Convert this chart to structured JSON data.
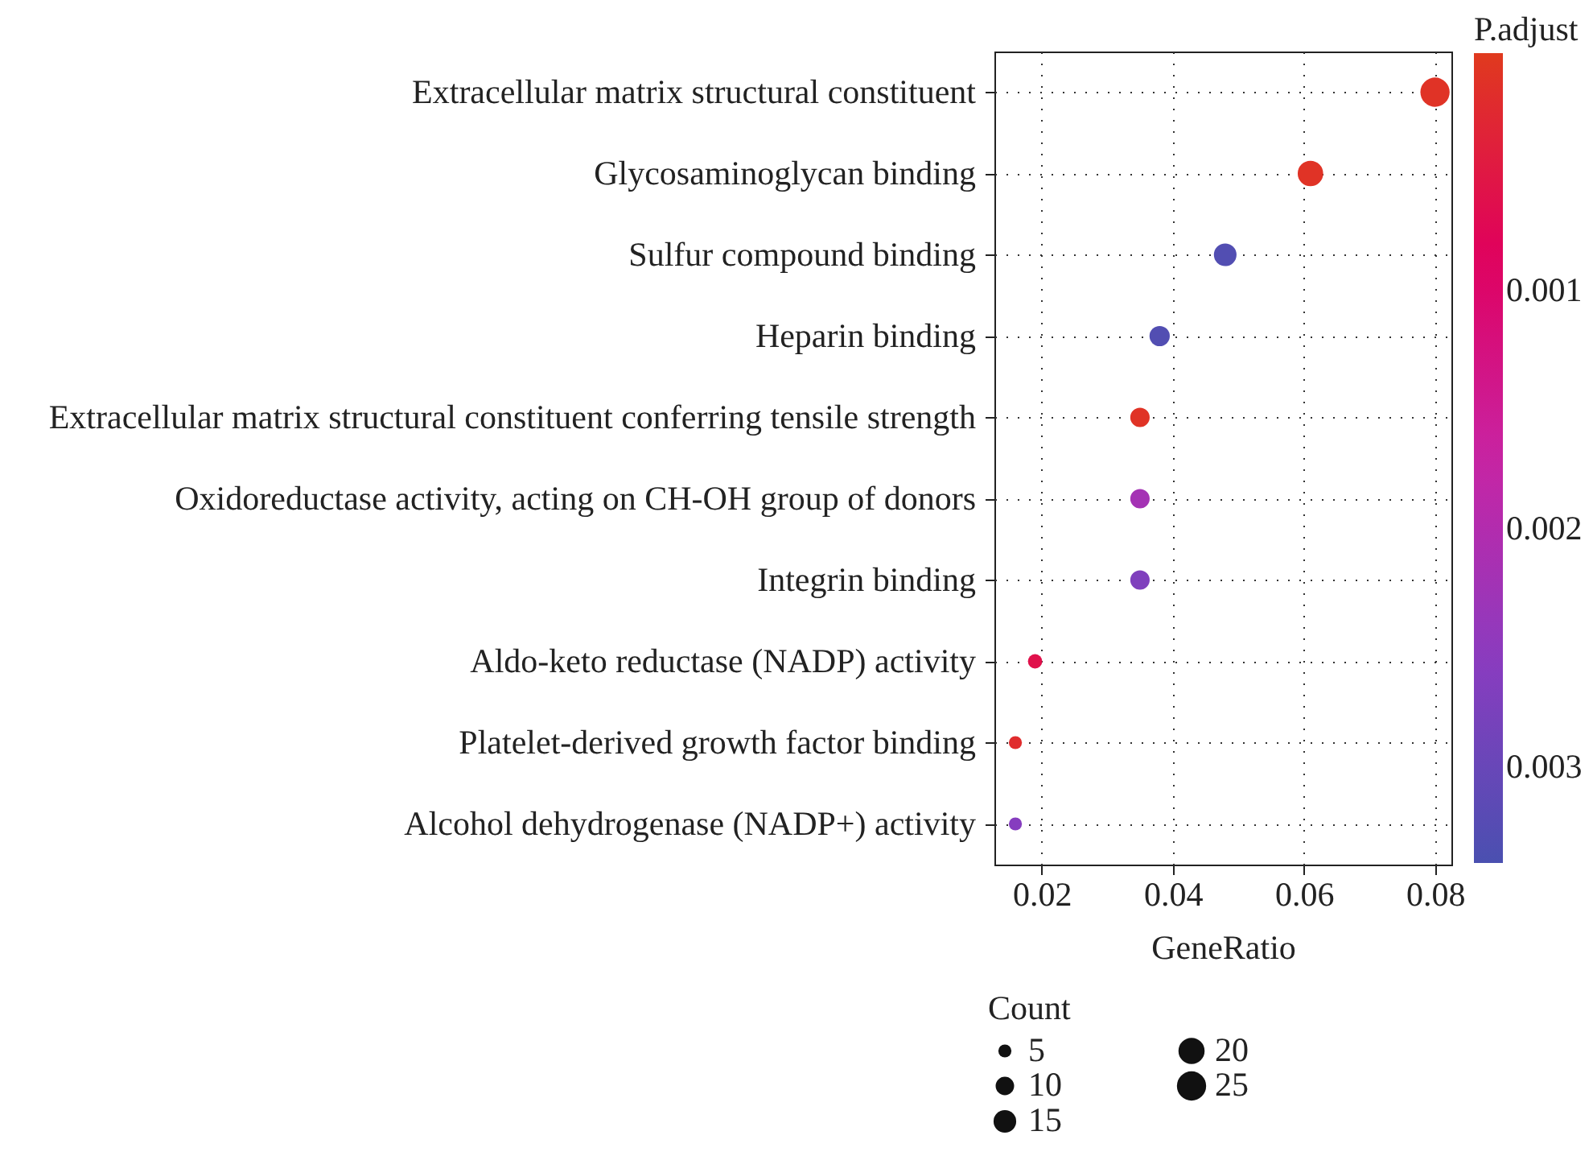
{
  "chart_data": {
    "type": "scatter",
    "categories": [
      "Extracellular matrix structural constituent",
      "Glycosaminoglycan binding",
      "Sulfur compound binding",
      "Heparin binding",
      "Extracellular matrix structural constituent conferring tensile strength",
      "Oxidoreductase activity, acting on CH-OH group of donors",
      "Integrin binding",
      "Aldo-keto reductase (NADP) activity",
      "Platelet-derived growth factor binding",
      "Alcohol dehydrogenase (NADP+) activity"
    ],
    "values": [
      0.08,
      0.061,
      0.048,
      0.038,
      0.035,
      0.035,
      0.035,
      0.019,
      0.016,
      0.016
    ],
    "sizes": [
      25,
      19,
      15,
      12,
      11,
      11,
      11,
      6,
      5,
      5
    ],
    "cvalues": [
      0.0001,
      0.0001,
      0.0033,
      0.0033,
      0.0001,
      0.0022,
      0.0027,
      0.0006,
      0.0002,
      0.0026
    ],
    "xlabel": "GeneRatio",
    "clabel": "P.adjust",
    "legend_title": "Count",
    "size_legend": [
      5,
      10,
      15,
      20,
      25
    ],
    "clim": [
      0,
      0.0034
    ],
    "cticks": [
      0.001,
      0.002,
      0.003
    ],
    "xlim": [
      0.0128,
      0.0825
    ],
    "xticks": [
      0.02,
      0.04,
      0.06,
      0.08
    ],
    "grid": true,
    "marker": "circle",
    "orientation": "horizontal"
  }
}
